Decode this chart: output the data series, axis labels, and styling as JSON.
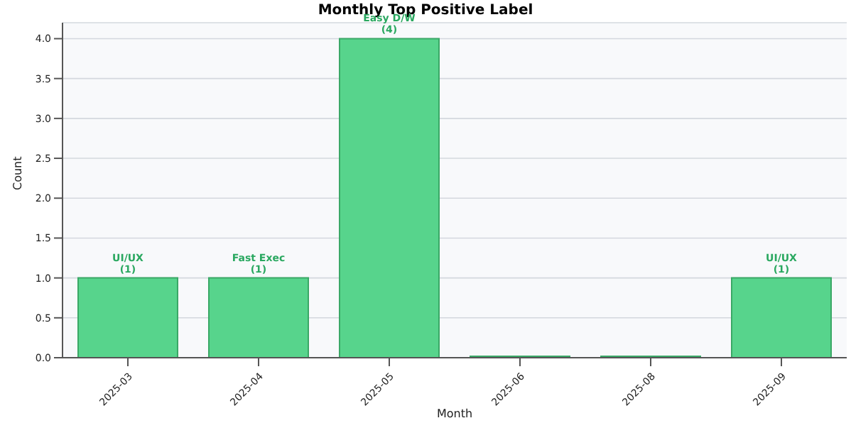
{
  "chart_data": {
    "type": "bar",
    "title": "Monthly Top Positive Label",
    "xlabel": "Month",
    "ylabel": "Count",
    "categories": [
      "2025-03",
      "2025-04",
      "2025-05",
      "2025-06",
      "2025-08",
      "2025-09"
    ],
    "values": [
      1,
      1,
      4,
      0,
      0,
      1
    ],
    "value_labels": [
      "UI/UX\n(1)",
      "Fast Exec\n(1)",
      "Easy D/W\n(4)",
      null,
      null,
      "UI/UX\n(1)"
    ],
    "color": "#57d48c",
    "ylim": [
      0,
      4.2
    ],
    "yticks": [
      {
        "value": 0,
        "label": "0.0"
      },
      0.5,
      {
        "value": 1,
        "label": "1.0"
      },
      1.5,
      {
        "value": 2,
        "label": "2.0"
      },
      2.5,
      {
        "value": 3,
        "label": "3.0"
      },
      3.5,
      {
        "value": 4,
        "label": "4.0"
      }
    ],
    "grid": "y"
  }
}
